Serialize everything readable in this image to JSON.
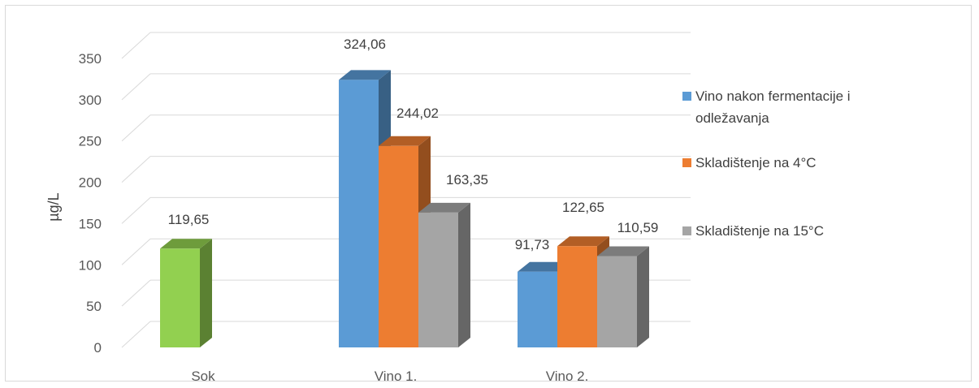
{
  "chart_data": {
    "type": "bar",
    "title": "",
    "xlabel": "",
    "ylabel": "µg/L",
    "ylim": [
      0,
      350
    ],
    "yticks": [
      0,
      50,
      100,
      150,
      200,
      250,
      300,
      350
    ],
    "categories": [
      "Sok",
      "Vino 1.",
      "Vino 2."
    ],
    "series": [
      {
        "name": "",
        "color": "#92d050",
        "values": [
          119.65,
          null,
          null
        ],
        "labels": [
          "119,65",
          "",
          ""
        ],
        "in_legend": false
      },
      {
        "name": "Vino nakon fermentacije i odležavanja",
        "color": "#5b9bd5",
        "values": [
          null,
          324.06,
          91.73
        ],
        "labels": [
          "",
          "324,06",
          "91,73"
        ],
        "in_legend": true
      },
      {
        "name": "Skladištenje na 4°C",
        "color": "#ed7d31",
        "values": [
          null,
          244.02,
          122.65
        ],
        "labels": [
          "",
          "244,02",
          "122,65"
        ],
        "in_legend": true
      },
      {
        "name": "Skladištenje na 15°C",
        "color": "#a5a5a5",
        "values": [
          null,
          163.35,
          110.59
        ],
        "labels": [
          "",
          "163,35",
          "110,59"
        ],
        "in_legend": true
      }
    ],
    "grid": true,
    "legend_position": "right",
    "style": "3d-clustered-column"
  }
}
